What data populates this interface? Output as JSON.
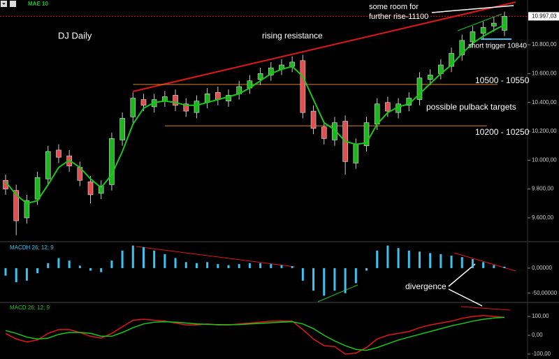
{
  "chart_data": [
    {
      "type": "candlestick",
      "title": "DJ Daily",
      "open": [
        9860,
        9790,
        9600,
        9730,
        9870,
        10070,
        10030,
        9950,
        9850,
        9770,
        9830,
        10140,
        10300,
        10420,
        10370,
        10410,
        10450,
        10390,
        10330,
        10400,
        10470,
        10410,
        10460,
        10500,
        10560,
        10590,
        10630,
        10650,
        10690,
        10340,
        10230,
        10140,
        10270,
        9980,
        10100,
        10250,
        10400,
        10330,
        10380,
        10420,
        10560,
        10600,
        10650,
        10730,
        10820,
        10880,
        10930,
        10900
      ],
      "high": [
        9900,
        9830,
        9760,
        9920,
        10100,
        10110,
        10070,
        9990,
        9890,
        9860,
        10190,
        10330,
        10470,
        10460,
        10460,
        10480,
        10490,
        10430,
        10450,
        10500,
        10510,
        10490,
        10550,
        10590,
        10640,
        10680,
        10700,
        10720,
        10730,
        10380,
        10270,
        10300,
        10310,
        10150,
        10300,
        10430,
        10440,
        10430,
        10470,
        10610,
        10630,
        10700,
        10780,
        10870,
        10930,
        10960,
        10990,
        11030
      ],
      "low": [
        9760,
        9480,
        9560,
        9690,
        9830,
        9980,
        9920,
        9820,
        9700,
        9730,
        9790,
        10100,
        10260,
        10340,
        10330,
        10370,
        10340,
        10300,
        10290,
        10360,
        10380,
        10370,
        10420,
        10460,
        10520,
        10550,
        10590,
        10610,
        10290,
        10180,
        10110,
        10100,
        9900,
        9940,
        10060,
        10210,
        10300,
        10290,
        10340,
        10380,
        10520,
        10560,
        10610,
        10690,
        10780,
        10840,
        10890,
        10860
      ],
      "close": [
        9800,
        9580,
        9720,
        9880,
        10060,
        10020,
        9960,
        9860,
        9760,
        9820,
        10150,
        10290,
        10430,
        10380,
        10420,
        10440,
        10380,
        10340,
        10410,
        10460,
        10420,
        10450,
        10510,
        10550,
        10600,
        10640,
        10660,
        10680,
        10330,
        10220,
        10150,
        10260,
        9990,
        10110,
        10260,
        10390,
        10340,
        10390,
        10430,
        10570,
        10590,
        10660,
        10740,
        10830,
        10890,
        10920,
        10950,
        10997.03
      ],
      "up_color": "#1fb51f",
      "down_color": "#e05050",
      "series": [
        {
          "name": "MAE 10",
          "color": "#19c819",
          "values": [
            9850,
            9760,
            9700,
            9720,
            9830,
            9950,
            10000,
            9950,
            9870,
            9810,
            9900,
            10060,
            10250,
            10360,
            10400,
            10410,
            10400,
            10380,
            10380,
            10400,
            10420,
            10440,
            10460,
            10500,
            10550,
            10600,
            10630,
            10650,
            10580,
            10420,
            10260,
            10210,
            10130,
            10110,
            10120,
            10250,
            10330,
            10370,
            10390,
            10460,
            10530,
            10600,
            10660,
            10740,
            10810,
            10860,
            10900,
            10940
          ]
        }
      ],
      "last": {
        "value": 10997.03,
        "label": "10.997,03"
      },
      "levels": [
        {
          "value": 10525,
          "label": "10500 - 10550",
          "color": "#d9822b"
        },
        {
          "value": 10238,
          "label": "10200 - 10250",
          "color": "#d9822b"
        }
      ],
      "annotations": [
        "rising resistance",
        "some room for",
        "further rise-11100",
        "short trigger 10840",
        "possible pulback targets",
        "divergence"
      ],
      "ylim": [
        9440,
        11086
      ],
      "yticks": [
        {
          "value": 10800,
          "label": "10.800,00"
        },
        {
          "value": 10600,
          "label": "10.600,00"
        },
        {
          "value": 10400,
          "label": "10.400,00"
        },
        {
          "value": 10200,
          "label": "10.200,00"
        },
        {
          "value": 10000,
          "label": "10.000,00"
        },
        {
          "value": 9800,
          "label": "9.800,00"
        },
        {
          "value": 9600,
          "label": "9.600,00"
        }
      ]
    },
    {
      "type": "bar",
      "title": "MACDH 26; 12; 9",
      "color": "#3cc3f0",
      "values": [
        -15,
        -28,
        -25,
        -10,
        10,
        20,
        15,
        5,
        -5,
        -8,
        15,
        35,
        45,
        42,
        35,
        28,
        20,
        12,
        10,
        12,
        8,
        6,
        8,
        10,
        10,
        8,
        6,
        4,
        -25,
        -45,
        -55,
        -45,
        -50,
        -30,
        -5,
        35,
        45,
        40,
        35,
        33,
        30,
        28,
        25,
        22,
        18,
        12,
        6,
        3
      ],
      "ylim": [
        -67,
        50
      ],
      "yticks": [
        {
          "value": 0,
          "label": "0,00000"
        },
        {
          "value": -50,
          "label": "-50,00000"
        }
      ]
    },
    {
      "type": "line",
      "title": "MACD 26; 12; 9",
      "color": "#19c819",
      "series": [
        {
          "color": "#e01818",
          "values": [
            10,
            -20,
            -35,
            -25,
            10,
            30,
            30,
            15,
            -5,
            -15,
            10,
            45,
            80,
            85,
            80,
            75,
            65,
            55,
            55,
            60,
            55,
            55,
            60,
            65,
            70,
            75,
            75,
            75,
            30,
            -20,
            -55,
            -60,
            -100,
            -95,
            -65,
            -20,
            0,
            10,
            20,
            40,
            55,
            65,
            75,
            90,
            100,
            105,
            100,
            95
          ]
        },
        {
          "color": "#19c819",
          "values": [
            25,
            10,
            -10,
            -20,
            -15,
            5,
            15,
            15,
            10,
            -5,
            -5,
            15,
            40,
            60,
            70,
            72,
            70,
            65,
            60,
            58,
            57,
            56,
            57,
            60,
            63,
            67,
            70,
            72,
            60,
            35,
            0,
            -30,
            -55,
            -75,
            -80,
            -65,
            -45,
            -25,
            -10,
            5,
            20,
            35,
            50,
            62,
            75,
            85,
            92,
            95
          ]
        }
      ],
      "ylim": [
        -126,
        167
      ],
      "yticks": [
        {
          "value": 100,
          "label": "100,00"
        },
        {
          "value": 0,
          "label": "0,00"
        },
        {
          "value": -100,
          "label": "-100,00"
        }
      ]
    }
  ]
}
